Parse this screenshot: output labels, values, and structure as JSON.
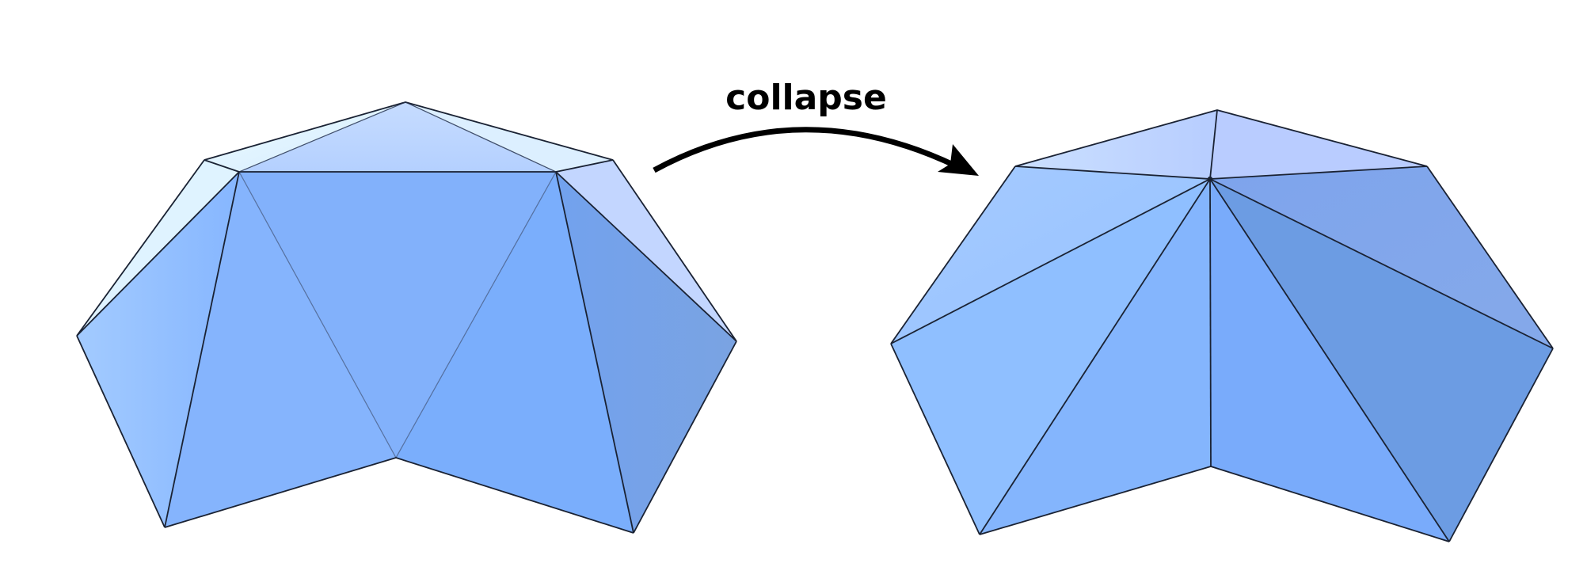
{
  "diagram": {
    "operation_label": "collapse"
  }
}
